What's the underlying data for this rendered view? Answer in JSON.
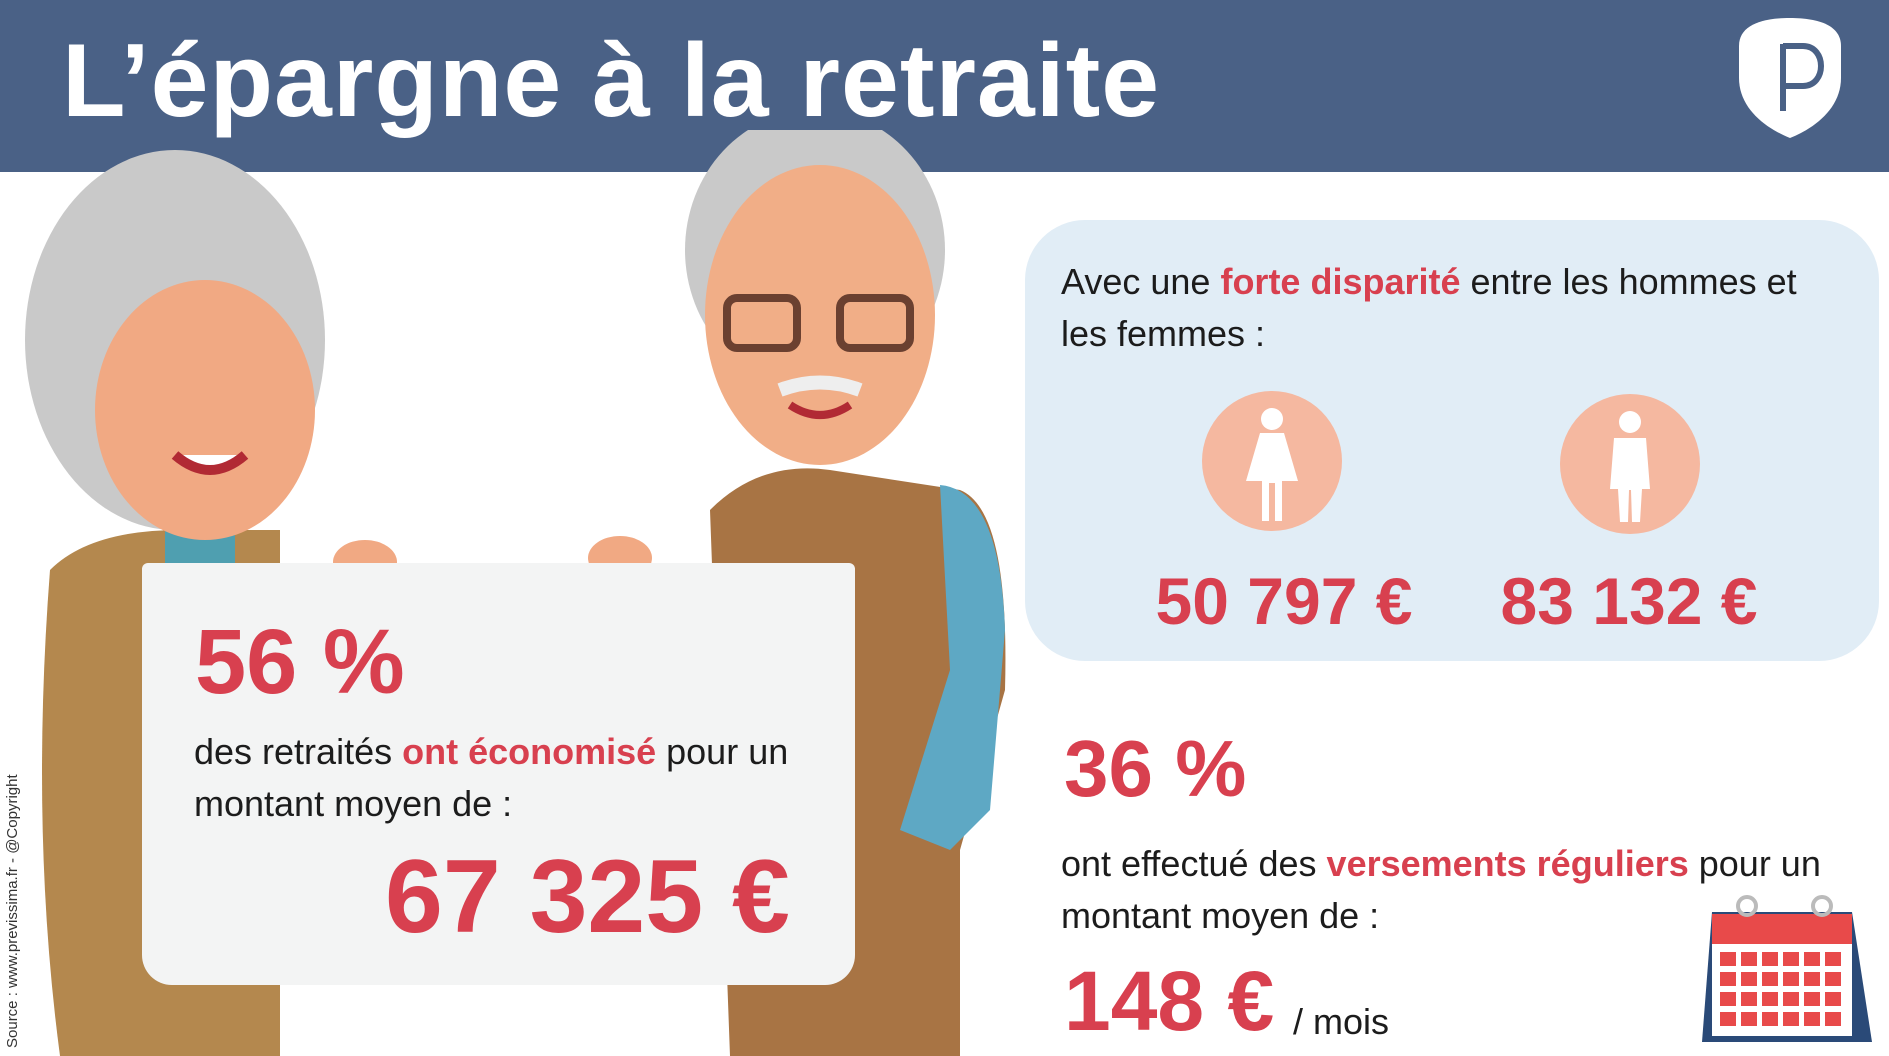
{
  "header": {
    "title": "L’épargne à la retraite",
    "logo_letter": "P"
  },
  "board": {
    "percent": "56 %",
    "text_before": "des retraités ",
    "text_highlight": "ont économisé",
    "text_after": " pour un",
    "line2": "montant moyen de :",
    "amount": "67 325 €"
  },
  "gender": {
    "text_before": "Avec une ",
    "text_highlight": "forte disparité",
    "text_after": " entre les hommes et",
    "line2": "les femmes :",
    "women_amount": "50 797 €",
    "men_amount": "83 132 €"
  },
  "regular": {
    "percent": "36 %",
    "text_before": "ont effectué des ",
    "text_highlight": "versements réguliers",
    "text_after": " pour un",
    "line2": "montant moyen de :",
    "amount": "148 €",
    "unit": "/ mois"
  },
  "source": "Source : www.previssima.fr - @Copyright",
  "colors": {
    "header": "#4a6186",
    "accent": "#d8404f",
    "box": "#e1edf6",
    "circle": "#f5b8a0"
  }
}
